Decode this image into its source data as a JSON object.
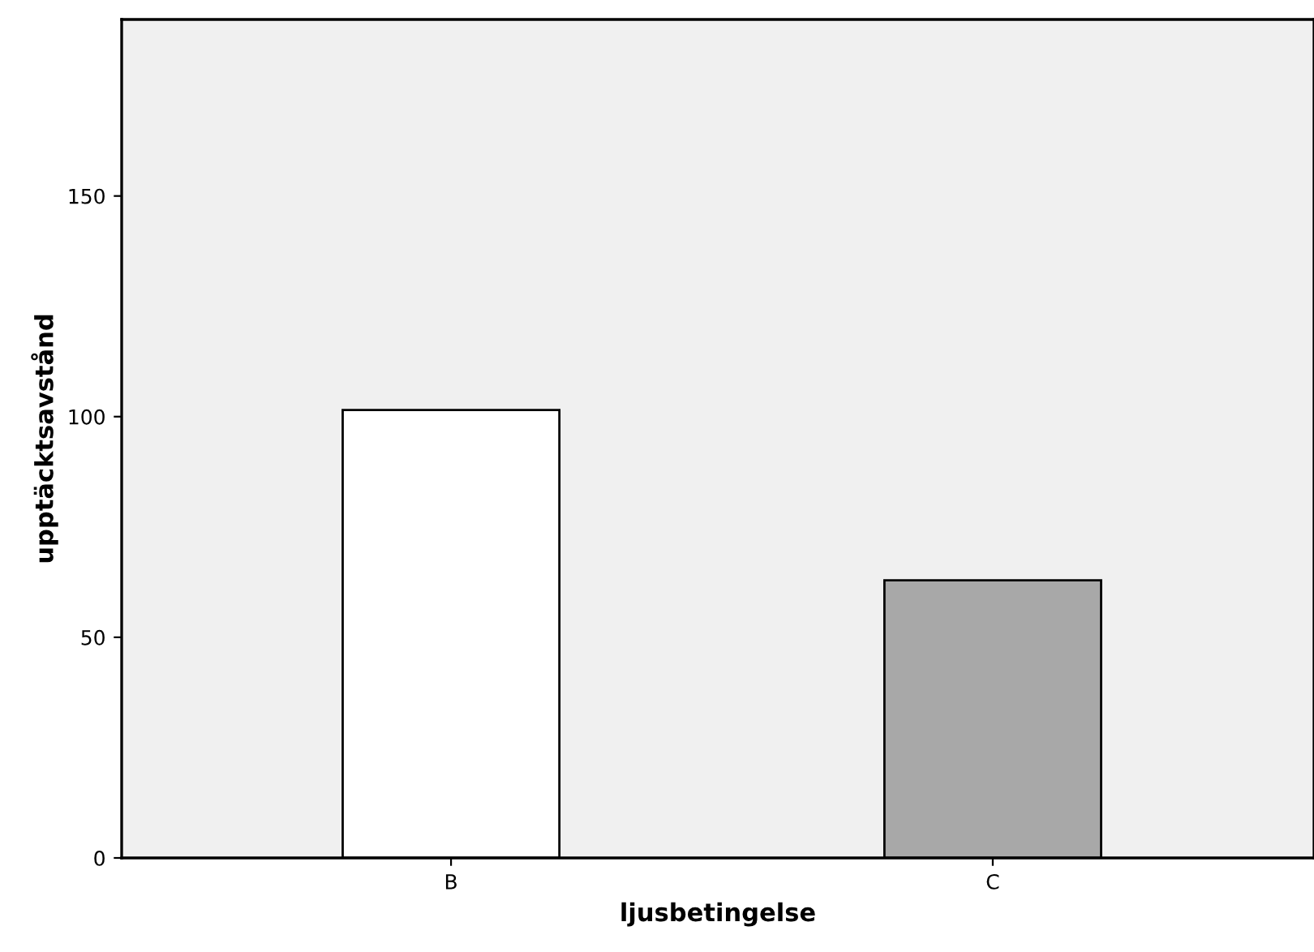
{
  "chart_data": {
    "type": "bar",
    "xlabel": "ljusbetingelse",
    "ylabel": "upptäcktsavstånd",
    "categories": [
      "B",
      "C"
    ],
    "values": [
      101.5,
      62.9
    ],
    "colors": [
      "#ffffff",
      "#a8a8a8"
    ],
    "ylim": [
      0,
      190
    ],
    "yticks": [
      0,
      50,
      100,
      150
    ],
    "grid": false
  }
}
